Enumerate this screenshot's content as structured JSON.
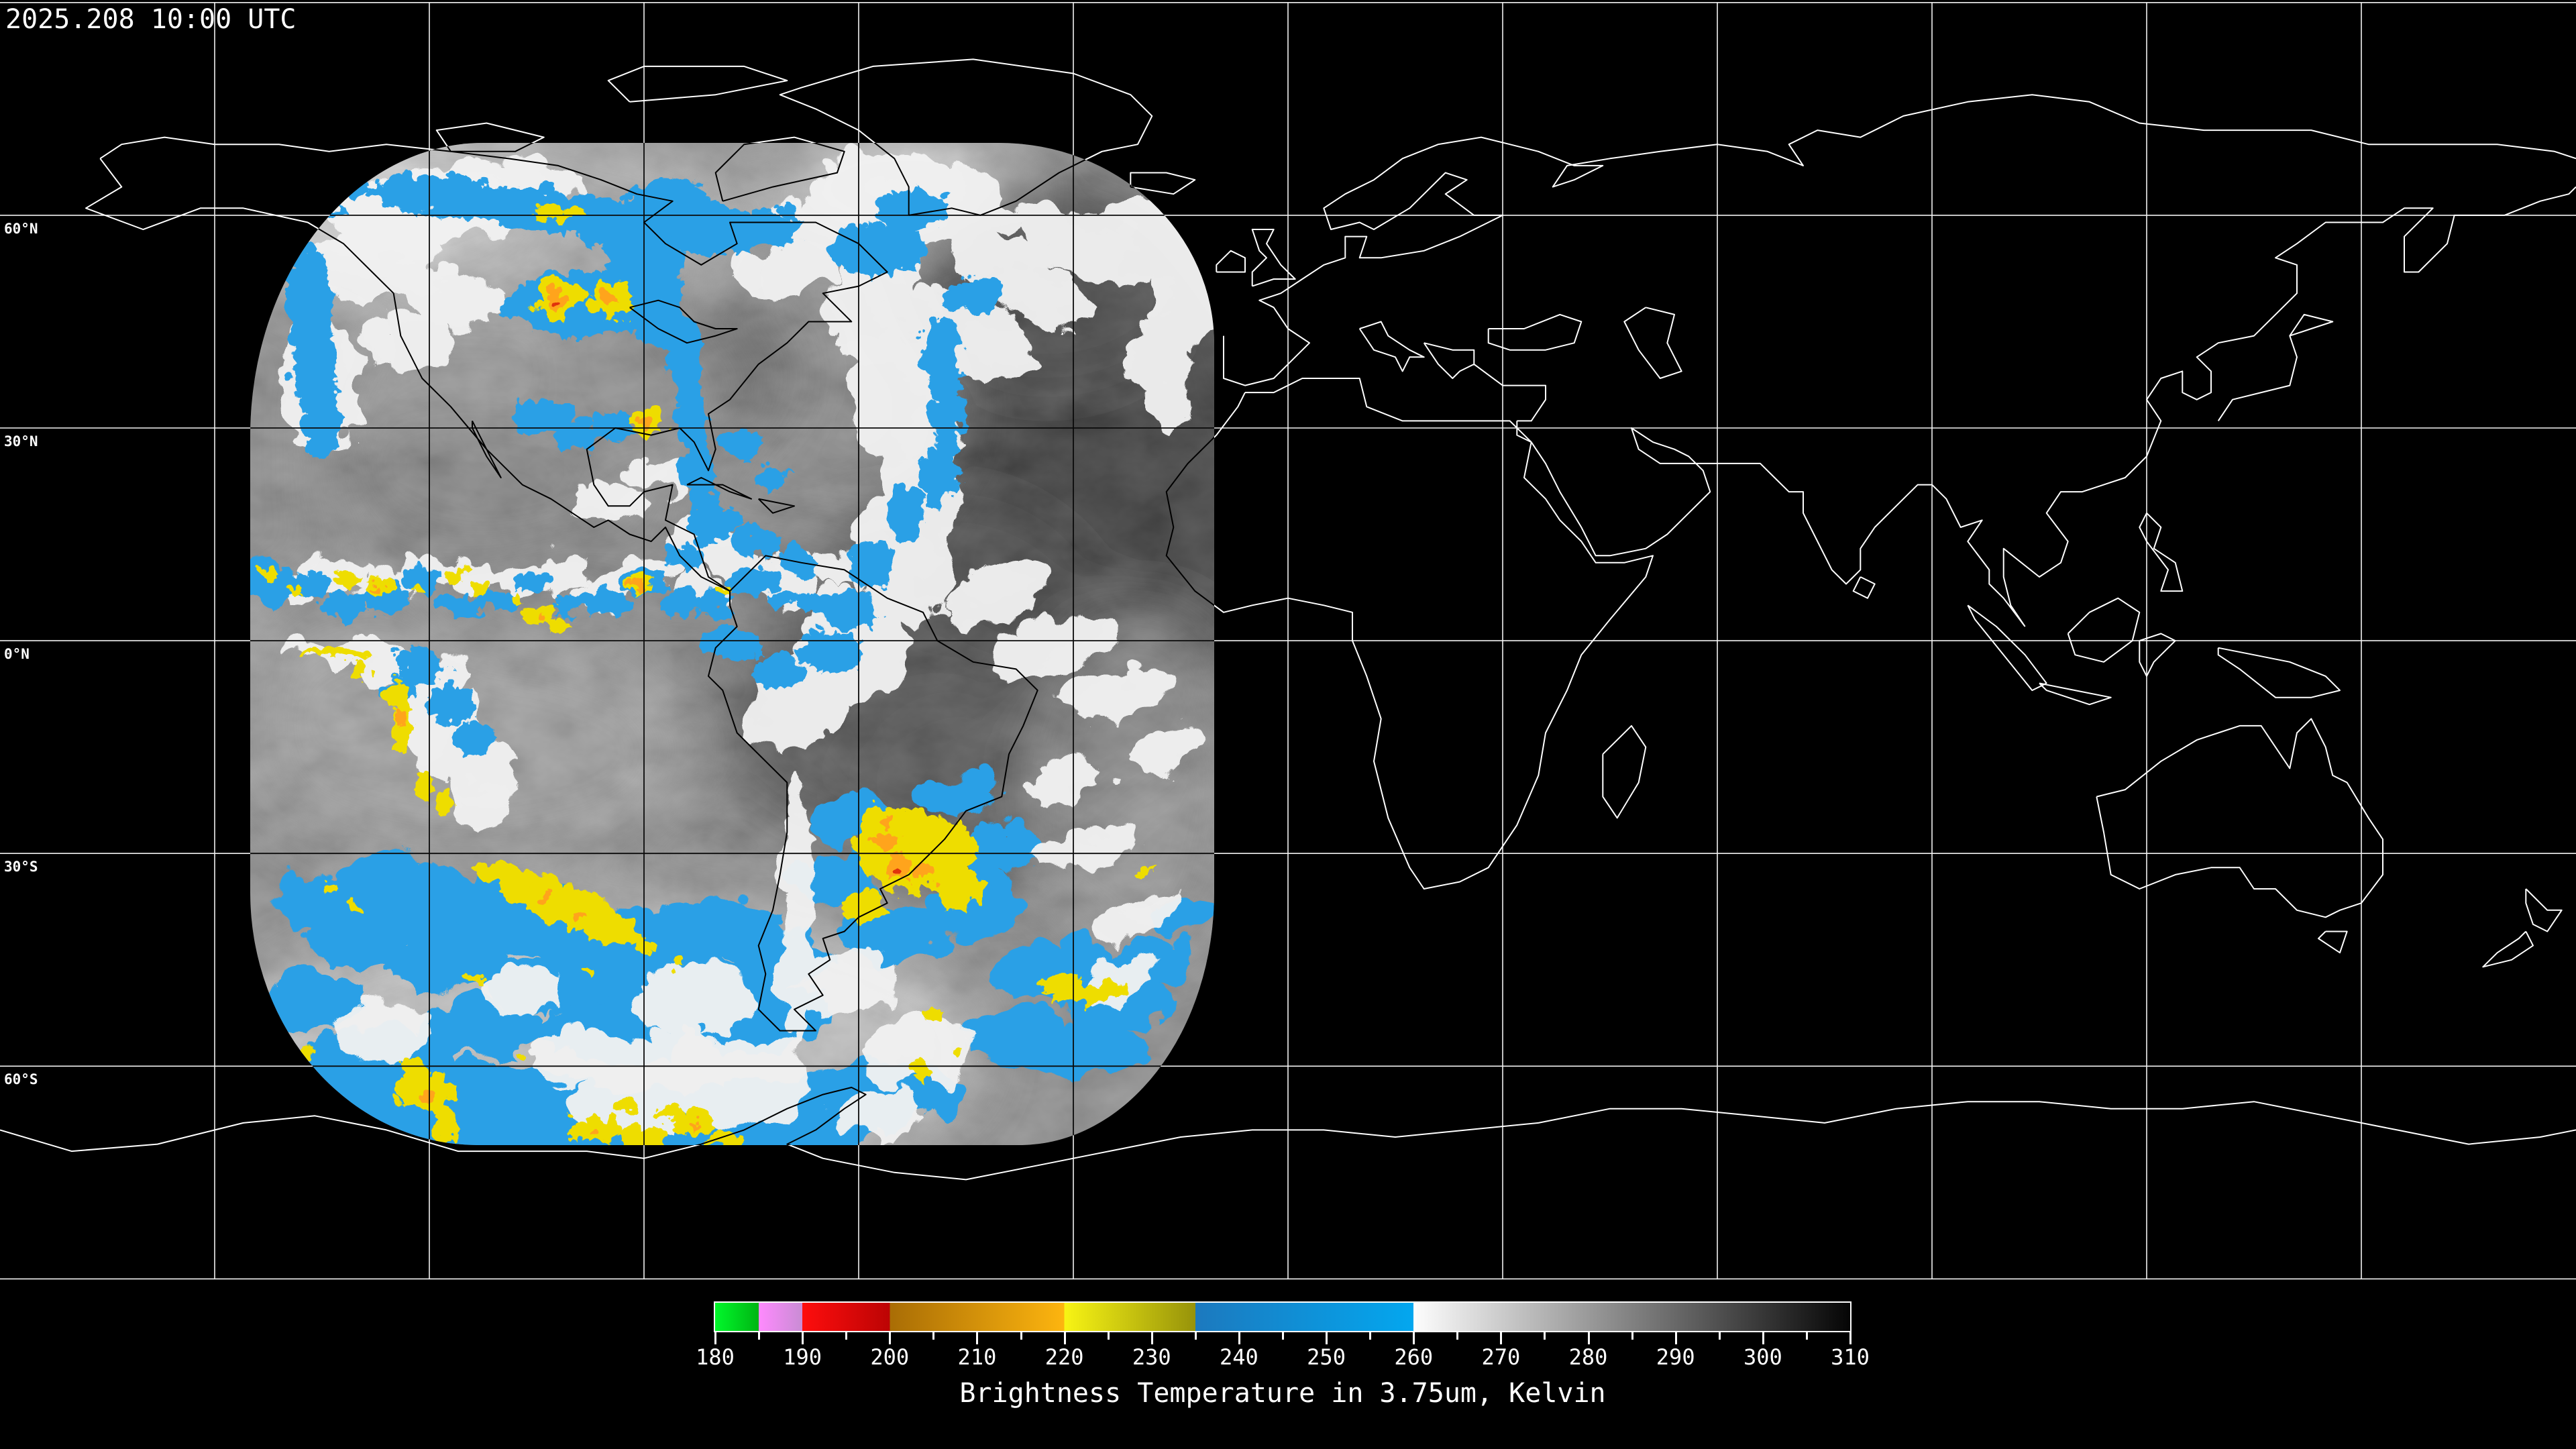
{
  "header": {
    "timestamp": "2025.208 10:00 UTC"
  },
  "map": {
    "grid_spacing_degrees": 30,
    "latitude_labels": [
      {
        "label": "60°N",
        "lat": 60
      },
      {
        "label": "30°N",
        "lat": 30
      },
      {
        "label": "0°N",
        "lat": 0
      },
      {
        "label": "30°S",
        "lat": -30
      },
      {
        "label": "60°S",
        "lat": -60
      }
    ],
    "satellite_footprint": "GOES-East full disk brightness temperature swath over the Americas"
  },
  "colorbar": {
    "title": "Brightness Temperature in 3.75um, Kelvin",
    "min": 180,
    "max": 310,
    "major_tick_step": 10,
    "minor_tick_step": 5,
    "tick_labels": [
      "180",
      "190",
      "200",
      "210",
      "220",
      "230",
      "240",
      "250",
      "260",
      "270",
      "280",
      "290",
      "300",
      "310"
    ],
    "segments": [
      {
        "from": 180,
        "to": 185,
        "start_color": "#00F82B",
        "end_color": "#00B513"
      },
      {
        "from": 185,
        "to": 190,
        "start_color": "#FF8AFE",
        "end_color": "#C98CD4"
      },
      {
        "from": 190,
        "to": 200,
        "start_color": "#FE0D0D",
        "end_color": "#BC0404"
      },
      {
        "from": 200,
        "to": 220,
        "start_color": "#A96D05",
        "end_color": "#FDB50F"
      },
      {
        "from": 220,
        "to": 235,
        "start_color": "#F8F414",
        "end_color": "#97930A"
      },
      {
        "from": 235,
        "to": 260,
        "start_color": "#1C79BE",
        "end_color": "#03A7EF"
      },
      {
        "from": 260,
        "to": 310,
        "start_color": "#FDFDFD",
        "end_color": "#050505"
      }
    ]
  },
  "colors": {
    "background": "#000000",
    "graticule_outside": "#FFFFFF",
    "graticule_inside": "#0A0A0A",
    "coastline_outside": "#FFFFFF",
    "coastline_inside": "#000000",
    "cold_cloud_blue": "#2AA0E6",
    "very_cold_cloud_yellow": "#EEDD04",
    "extreme_cloud_orange": "#FFA41C"
  }
}
